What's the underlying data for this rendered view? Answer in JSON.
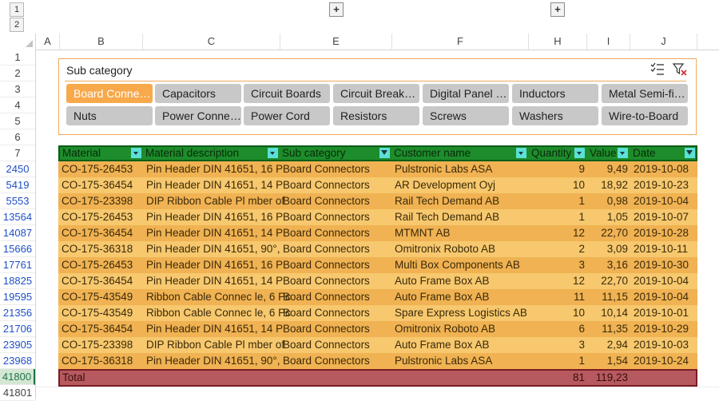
{
  "outline": {
    "levels": [
      "1",
      "2"
    ],
    "expand_buttons": [
      "+",
      "+"
    ]
  },
  "columns": [
    "A",
    "B",
    "C",
    "E",
    "F",
    "H",
    "I",
    "J"
  ],
  "row_numbers": [
    "1",
    "2",
    "3",
    "4",
    "5",
    "6",
    "7",
    "2450",
    "5419",
    "5553",
    "13564",
    "14087",
    "15666",
    "17761",
    "18825",
    "19595",
    "21356",
    "21706",
    "23905",
    "23968",
    "41800",
    "41801"
  ],
  "slicer": {
    "title": "Sub category",
    "multiselect_icon": "multi-select-icon",
    "clear_icon": "clear-filter-icon",
    "items": [
      {
        "label": "Board Conne…",
        "selected": true
      },
      {
        "label": "Capacitors",
        "selected": false
      },
      {
        "label": "Circuit Boards",
        "selected": false
      },
      {
        "label": "Circuit Break…",
        "selected": false
      },
      {
        "label": "Digital Panel …",
        "selected": false
      },
      {
        "label": "Inductors",
        "selected": false
      },
      {
        "label": "Metal Semi-fi…",
        "selected": false
      },
      {
        "label": "Nuts",
        "selected": false
      },
      {
        "label": "Power Conne…",
        "selected": false
      },
      {
        "label": "Power Cord",
        "selected": false
      },
      {
        "label": "Resistors",
        "selected": false
      },
      {
        "label": "Screws",
        "selected": false
      },
      {
        "label": "Washers",
        "selected": false
      },
      {
        "label": "Wire-to-Board",
        "selected": false
      }
    ]
  },
  "table": {
    "headers": [
      {
        "label": "Material",
        "filter": "dropdown"
      },
      {
        "label": "Material description",
        "filter": "dropdown"
      },
      {
        "label": "Sub category",
        "filter": "filtered"
      },
      {
        "label": "Customer name",
        "filter": "dropdown"
      },
      {
        "label": "Quantity",
        "filter": "dropdown"
      },
      {
        "label": "Value",
        "filter": "dropdown"
      },
      {
        "label": "Date",
        "filter": "filtered"
      }
    ],
    "rows": [
      [
        "CO-175-26453",
        "Pin Header DIN 41651, 16 P",
        "Board Connectors",
        "Pulstronic Labs ASA",
        "9",
        "9,49",
        "2019-10-08"
      ],
      [
        "CO-175-36454",
        "Pin Header DIN 41651, 14 P",
        "Board Connectors",
        "AR Development Oyj",
        "10",
        "18,92",
        "2019-10-23"
      ],
      [
        "CO-175-23398",
        "DIP Ribbon Cable Pl mber of",
        "Board Connectors",
        "Rail Tech Demand AB",
        "1",
        "0,98",
        "2019-10-04"
      ],
      [
        "CO-175-26453",
        "Pin Header DIN 41651, 16 P",
        "Board Connectors",
        "Rail Tech Demand AB",
        "1",
        "1,05",
        "2019-10-07"
      ],
      [
        "CO-175-36454",
        "Pin Header DIN 41651, 14 P",
        "Board Connectors",
        "MTMNT AB",
        "12",
        "22,70",
        "2019-10-28"
      ],
      [
        "CO-175-36318",
        "Pin Header DIN 41651, 90°,",
        "Board Connectors",
        "Omitronix Roboto AB",
        "2",
        "3,09",
        "2019-10-11"
      ],
      [
        "CO-175-26453",
        "Pin Header DIN 41651, 16 P",
        "Board Connectors",
        "Multi Box Components AB",
        "3",
        "3,16",
        "2019-10-30"
      ],
      [
        "CO-175-36454",
        "Pin Header DIN 41651, 14 P",
        "Board Connectors",
        "Auto Frame Box AB",
        "12",
        "22,70",
        "2019-10-04"
      ],
      [
        "CO-175-43549",
        "Ribbon Cable Connec le, 6 Pc",
        "Board Connectors",
        "Auto Frame Box AB",
        "11",
        "11,15",
        "2019-10-04"
      ],
      [
        "CO-175-43549",
        "Ribbon Cable Connec le, 6 Pc",
        "Board Connectors",
        "Spare Express Logistics AB",
        "10",
        "10,14",
        "2019-10-01"
      ],
      [
        "CO-175-36454",
        "Pin Header DIN 41651, 14 P",
        "Board Connectors",
        "Omitronix Roboto AB",
        "6",
        "11,35",
        "2019-10-29"
      ],
      [
        "CO-175-23398",
        "DIP Ribbon Cable Pl mber of",
        "Board Connectors",
        "Auto Frame Box AB",
        "3",
        "2,94",
        "2019-10-03"
      ],
      [
        "CO-175-36318",
        "Pin Header DIN 41651, 90°,",
        "Board Connectors",
        "Pulstronic Labs ASA",
        "1",
        "1,54",
        "2019-10-24"
      ]
    ],
    "total": {
      "label": "Total",
      "quantity": "81",
      "value": "119,23"
    }
  },
  "colors": {
    "header": "#1d8c2b",
    "body": "#f4c169",
    "total": "#b75a5f",
    "slicer_selected": "#f8a94b",
    "selected_row_header": "#217346"
  }
}
